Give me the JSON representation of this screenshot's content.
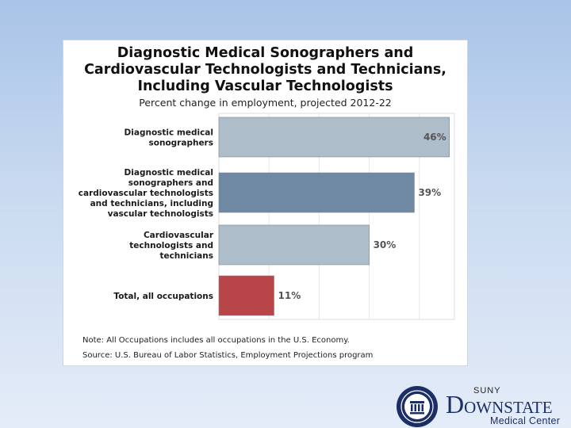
{
  "chart_data": {
    "type": "bar",
    "orientation": "horizontal",
    "title_lines": [
      "Diagnostic Medical Sonographers and",
      "Cardiovascular Technologists and Technicians,",
      "Including Vascular Technologists"
    ],
    "subtitle": "Percent change in employment, projected 2012-22",
    "categories": [
      [
        "Diagnostic medical",
        "sonographers"
      ],
      [
        "Diagnostic medical",
        "sonographers and",
        "cardiovascular technologists",
        "and technicians, including",
        "vascular technologists"
      ],
      [
        "Cardiovascular",
        "technologists and",
        "technicians"
      ],
      [
        "Total, all occupations"
      ]
    ],
    "values": [
      46,
      39,
      30,
      11
    ],
    "value_labels": [
      "46%",
      "39%",
      "30%",
      "11%"
    ],
    "bar_colors": [
      "#aebdca",
      "#7089a3",
      "#aebdca",
      "#b84547"
    ],
    "xlim": [
      0,
      47
    ],
    "grid": true
  },
  "notes": {
    "note": "Note: All Occupations includes all occupations in the U.S. Economy.",
    "source": "Source: U.S. Bureau of Labor Statistics, Employment Projections program"
  },
  "logo": {
    "suny": "SUNY",
    "name_big_d": "D",
    "name_rest": "OWNSTATE",
    "subtitle": "Medical Center"
  }
}
